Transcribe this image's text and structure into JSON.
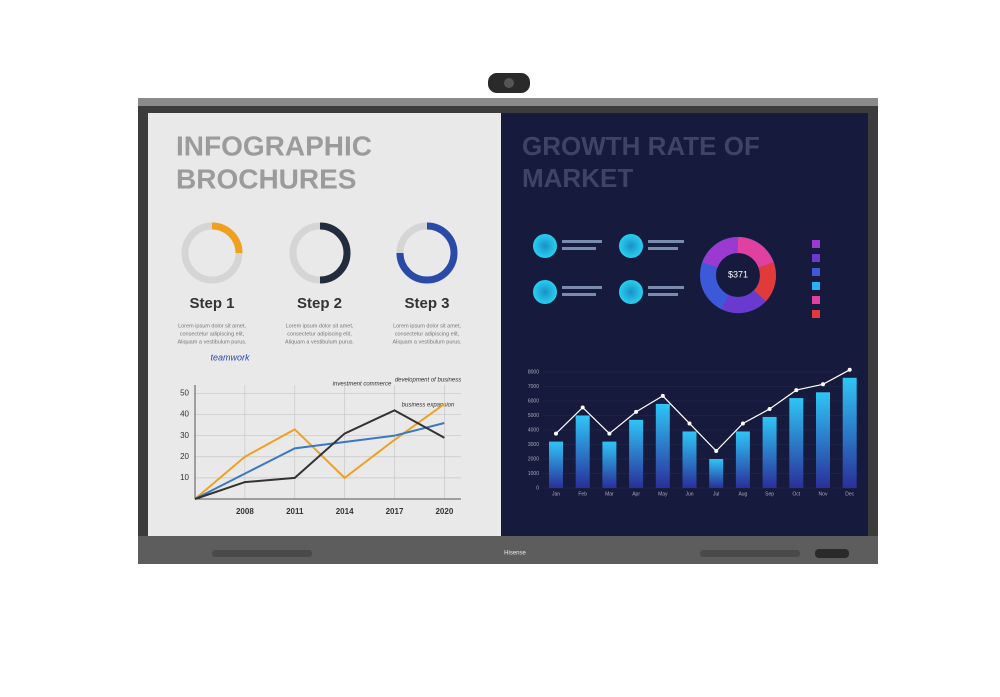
{
  "camera": {},
  "screen": {
    "left": {
      "title": [
        "INFOGRAPHIC",
        "BROCHURES"
      ],
      "steps": [
        {
          "label": "Step 1",
          "text": [
            "Lorem ipsum dolor sit amet,",
            "consectetur adipiscing elit,",
            "Aliquam a vestibulum purus."
          ]
        },
        {
          "label": "Step 2",
          "text": [
            "Lorem ipsum dolor sit amet,",
            "consectetur adipiscing elit,",
            "Aliquam a vestibulum purus."
          ]
        },
        {
          "label": "Step 3",
          "text": [
            "Lorem ipsum dolor sit amet,",
            "consectetur adipiscing elit,",
            "Aliquam a vestibulum purus."
          ]
        }
      ],
      "annotations": [
        "teamwork",
        "investment commerce",
        "development of business",
        "business expansion"
      ],
      "chart": {
        "type": "line",
        "x": [
          2005,
          2008,
          2011,
          2014,
          2017,
          2020
        ],
        "xlim": [
          2005,
          2021
        ],
        "xticks": [
          2008,
          2011,
          2014,
          2017,
          2020
        ],
        "ylim": [
          0,
          54
        ],
        "yticks": [
          10,
          20,
          30,
          40,
          50
        ],
        "series": [
          {
            "color": "#f0a020",
            "values": [
              0,
              20,
              33,
              10,
              28,
              45
            ]
          },
          {
            "color": "#3a78c0",
            "values": [
              0,
              12,
              24,
              27,
              30,
              36
            ]
          },
          {
            "color": "#333333",
            "values": [
              0,
              8,
              10,
              31,
              42,
              29
            ]
          }
        ]
      }
    },
    "right": {
      "title": [
        "GROWTH RATE OF",
        "MARKET"
      ],
      "donut_center": "$371",
      "bar_chart": {
        "type": "bar",
        "categories": [
          "Jan",
          "Feb",
          "Mar",
          "Apr",
          "May",
          "Jun",
          "Jul",
          "Aug",
          "Sep",
          "Oct",
          "Nov",
          "Dec"
        ],
        "values": [
          3200,
          5000,
          3200,
          4700,
          5800,
          3900,
          2000,
          3900,
          4900,
          6200,
          6600,
          7600
        ],
        "ylim": [
          0,
          8000
        ],
        "yticks": [
          0,
          1000,
          2000,
          3000,
          4000,
          5000,
          6000,
          7000,
          8000
        ]
      }
    },
    "brand": "Hisense"
  }
}
